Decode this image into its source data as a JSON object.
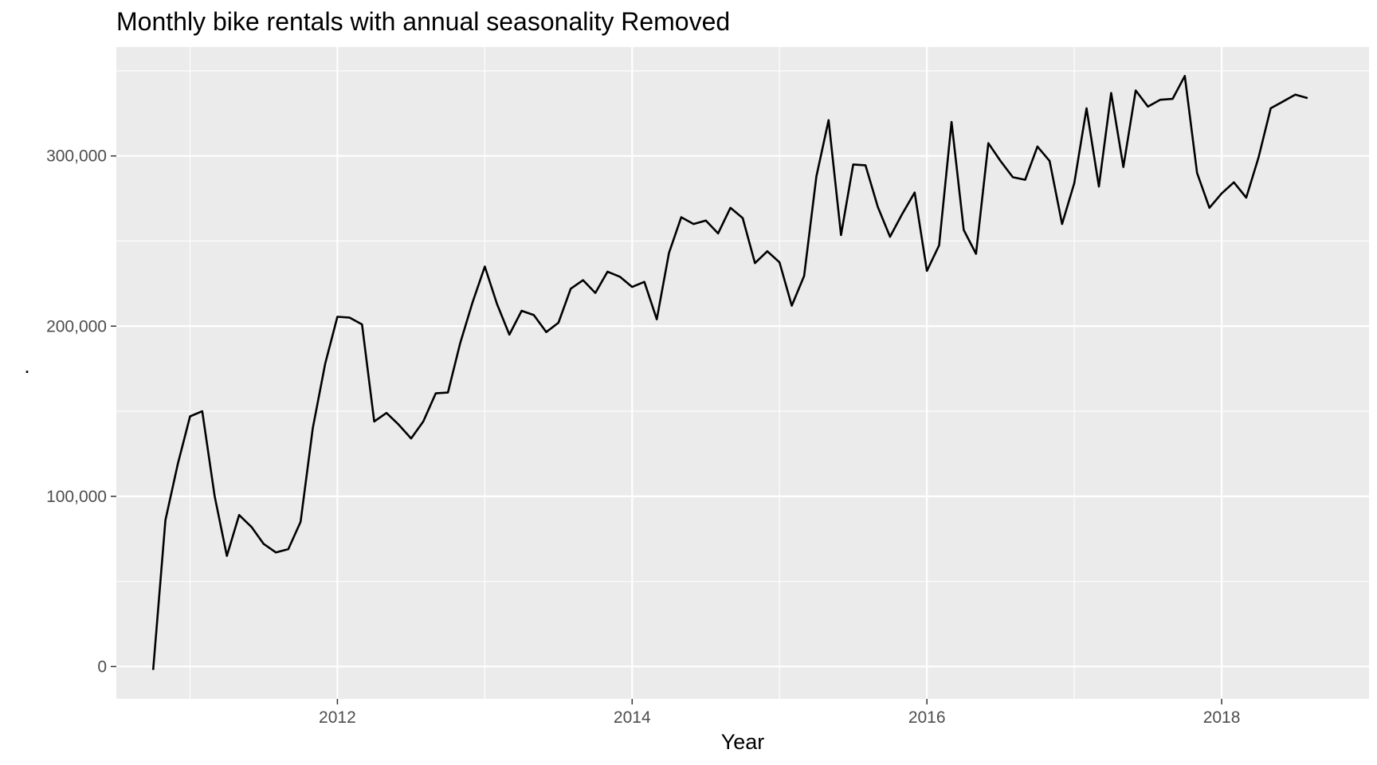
{
  "chart_data": {
    "type": "line",
    "title": "Monthly bike rentals with annual seasonality Removed",
    "xlabel": "Year",
    "ylabel": ".",
    "grid": true,
    "legend": "none",
    "colors": {
      "panel": "#ebebeb",
      "grid": "#ffffff",
      "line": "#000000"
    },
    "xlim": [
      2010.5,
      2019.0
    ],
    "ylim": [
      -19000,
      364000
    ],
    "x_ticks": [
      2012,
      2014,
      2016,
      2018
    ],
    "x_tick_labels": [
      "2012",
      "2014",
      "2016",
      "2018"
    ],
    "x_minor": [
      2011,
      2013,
      2015,
      2017
    ],
    "y_ticks": [
      0,
      100000,
      200000,
      300000
    ],
    "y_tick_labels": [
      "0",
      "100,000",
      "200,000",
      "300,000"
    ],
    "y_minor": [
      50000,
      150000,
      250000,
      350000
    ],
    "series": [
      {
        "x": [
          2010.75,
          2010.833,
          2010.917,
          2011.0,
          2011.083,
          2011.167,
          2011.25,
          2011.333,
          2011.417,
          2011.5,
          2011.583,
          2011.667,
          2011.75,
          2011.833,
          2011.917,
          2012.0,
          2012.083,
          2012.167,
          2012.25,
          2012.333,
          2012.417,
          2012.5,
          2012.583,
          2012.667,
          2012.75,
          2012.833,
          2012.917,
          2013.0,
          2013.083,
          2013.167,
          2013.25,
          2013.333,
          2013.417,
          2013.5,
          2013.583,
          2013.667,
          2013.75,
          2013.833,
          2013.917,
          2014.0,
          2014.083,
          2014.167,
          2014.25,
          2014.333,
          2014.417,
          2014.5,
          2014.583,
          2014.667,
          2014.75,
          2014.833,
          2014.917,
          2015.0,
          2015.083,
          2015.167,
          2015.25,
          2015.333,
          2015.417,
          2015.5,
          2015.583,
          2015.667,
          2015.75,
          2015.833,
          2015.917,
          2016.0,
          2016.083,
          2016.167,
          2016.25,
          2016.333,
          2016.417,
          2016.5,
          2016.583,
          2016.667,
          2016.75,
          2016.833,
          2016.917,
          2017.0,
          2017.083,
          2017.167,
          2017.25,
          2017.333,
          2017.417,
          2017.5,
          2017.583,
          2017.667,
          2017.75,
          2017.833,
          2017.917,
          2018.0,
          2018.083,
          2018.167,
          2018.25,
          2018.333,
          2018.417,
          2018.5,
          2018.583
        ],
        "values": [
          -2000,
          86000,
          119000,
          147000,
          150000,
          100000,
          65000,
          89000,
          82000,
          72000,
          67000,
          69000,
          85000,
          140000,
          178000,
          205500,
          205000,
          201000,
          144000,
          149000,
          142000,
          134000,
          144000,
          160500,
          161000,
          190000,
          214000,
          235000,
          213000,
          195000,
          209000,
          206500,
          196500,
          202000,
          222000,
          227000,
          219500,
          232000,
          229000,
          223000,
          226000,
          204000,
          243000,
          264000,
          260000,
          262000,
          254500,
          269500,
          263500,
          237000,
          244000,
          237500,
          212000,
          229500,
          288000,
          321000,
          253500,
          295000,
          294500,
          270000,
          252500,
          266000,
          278500,
          232500,
          247500,
          320000,
          256500,
          242500,
          307500,
          297000,
          287500,
          286000,
          305500,
          297000,
          260000,
          284000,
          328000,
          282000,
          337000,
          293500,
          338500,
          329000,
          333000,
          333500,
          347000,
          290000,
          269500,
          278000,
          284500,
          275500,
          299000,
          328000,
          332000,
          336000,
          334000
        ]
      }
    ]
  }
}
